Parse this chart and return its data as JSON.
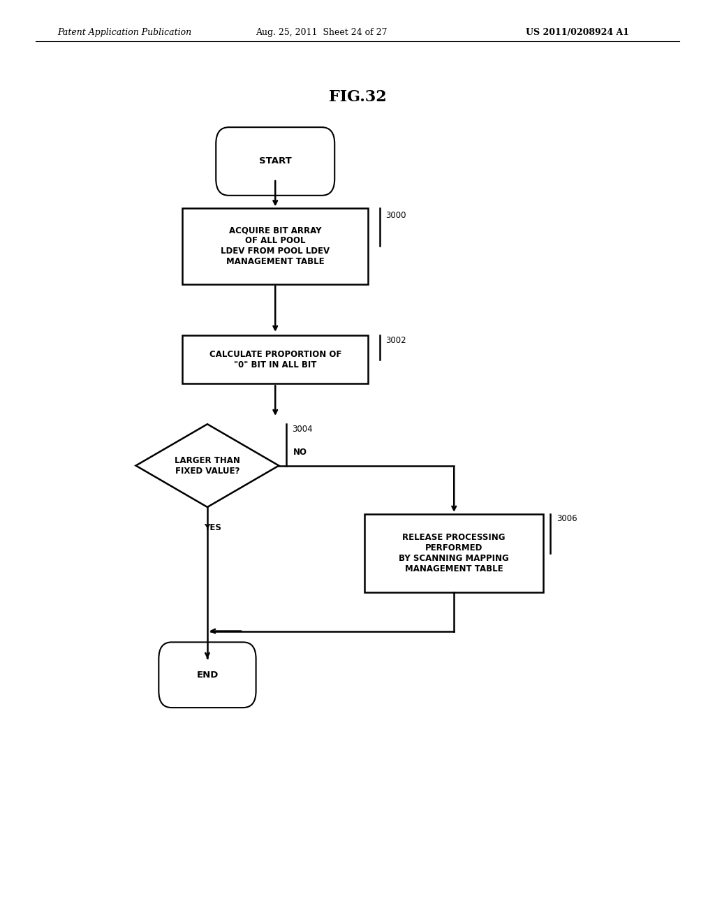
{
  "background_color": "#ffffff",
  "header_left": "Patent Application Publication",
  "header_center": "Aug. 25, 2011  Sheet 24 of 27",
  "header_right": "US 2011/0208924 A1",
  "figure_title": "FIG.32",
  "font_size_node": 8.5,
  "font_size_header": 9,
  "font_size_title": 16,
  "line_color": "#000000",
  "fill_color": "#ffffff",
  "text_color": "#000000"
}
